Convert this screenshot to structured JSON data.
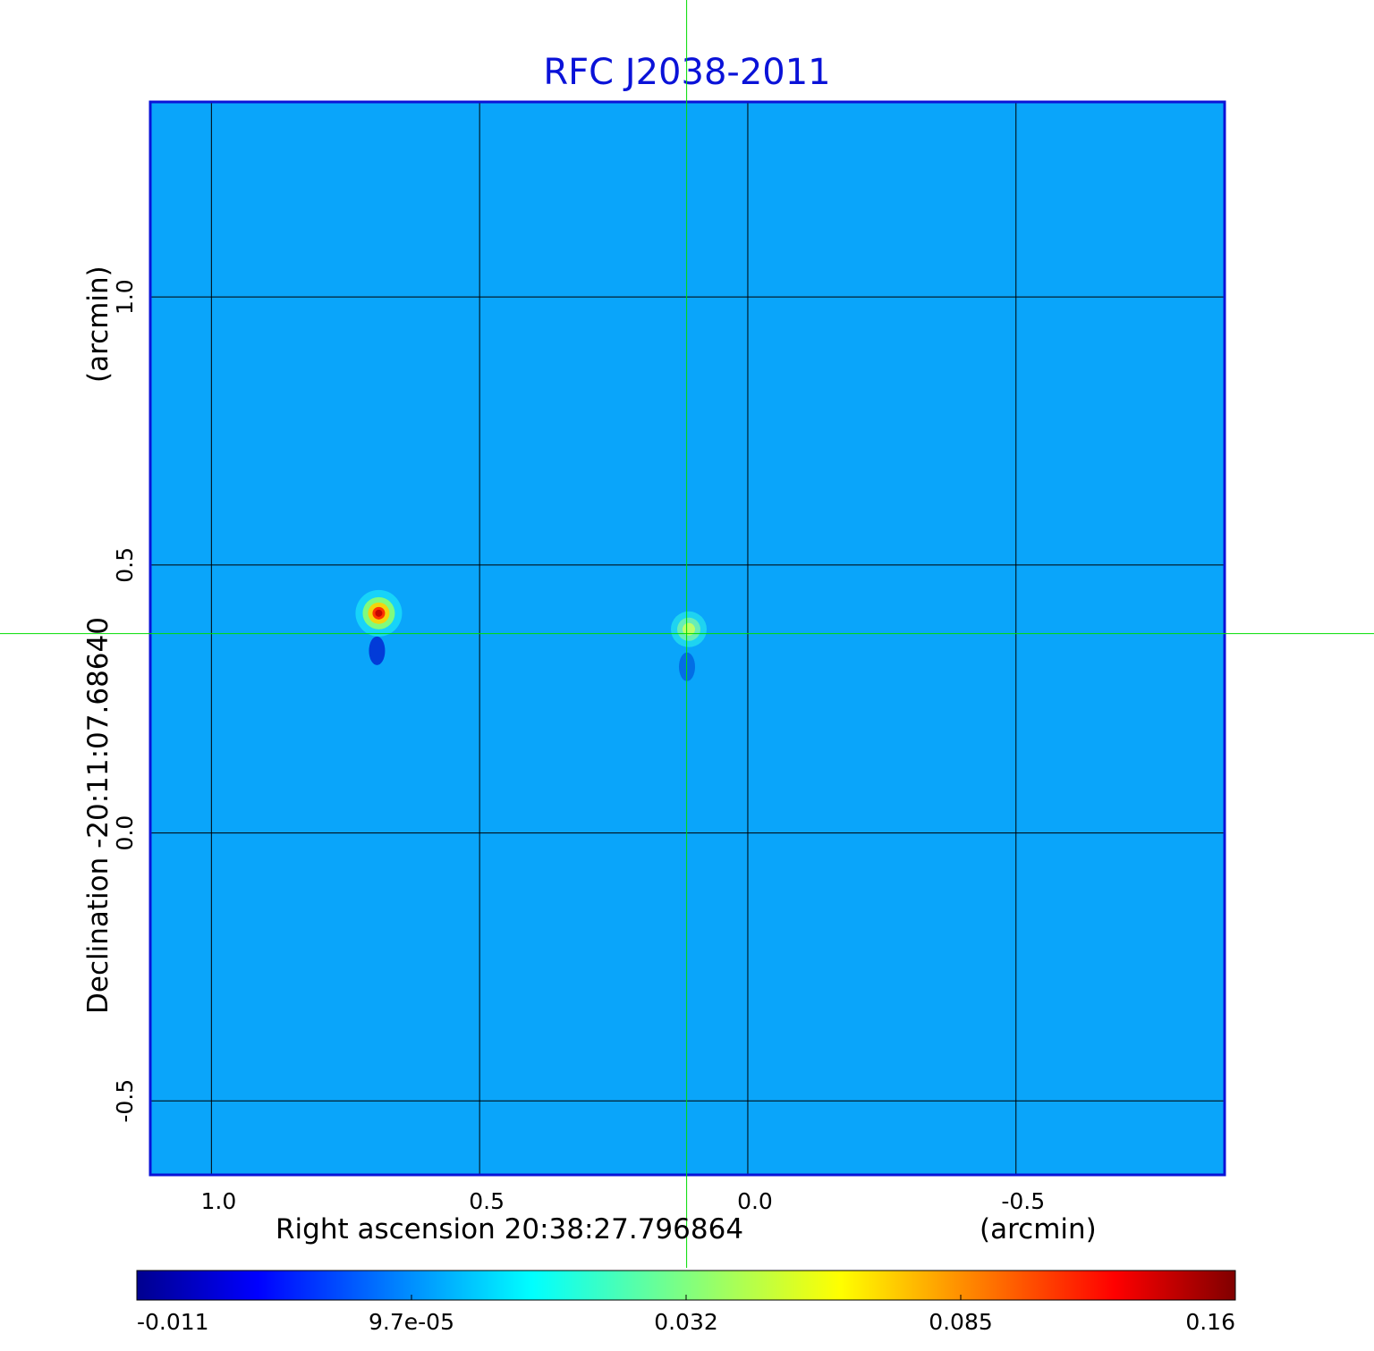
{
  "chart_data": {
    "type": "heatmap",
    "title": "RFC J2038-2011",
    "xlabel": "Right ascension  20:38:27.796864",
    "xunit": "(arcmin)",
    "ylabel": "Declination  -20:11:07.68640",
    "yunit": "(arcmin)",
    "xlim": [
      1.114,
      -0.889
    ],
    "ylim": [
      -0.638,
      1.364
    ],
    "x_ticks": [
      {
        "value": 1.0,
        "label": "1.0"
      },
      {
        "value": 0.5,
        "label": "0.5"
      },
      {
        "value": 0.0,
        "label": "0.0"
      },
      {
        "value": -0.5,
        "label": "-0.5"
      }
    ],
    "y_ticks": [
      {
        "value": 1.0,
        "label": "1.0"
      },
      {
        "value": 0.5,
        "label": "0.5"
      },
      {
        "value": 0.0,
        "label": "0.0"
      },
      {
        "value": -0.5,
        "label": "-0.5"
      }
    ],
    "grid": true,
    "crosshair": {
      "x": 0.114,
      "y": 0.372,
      "color": "#00dd00"
    },
    "colormap": "jet",
    "background_value": 0.0,
    "sources": [
      {
        "x": 0.688,
        "y": 0.41,
        "peak": 0.16
      },
      {
        "x": 0.11,
        "y": 0.38,
        "peak": 0.035
      }
    ],
    "colorbar": {
      "min": -0.011,
      "max": 0.16,
      "tick_labels": [
        "-0.011",
        "9.7e-05",
        "0.032",
        "0.085",
        "0.16"
      ]
    },
    "colors": {
      "title": "#0a12d8",
      "frame": "#0a12d8",
      "grid": "#000000",
      "crosshair": "#00dd00"
    }
  }
}
